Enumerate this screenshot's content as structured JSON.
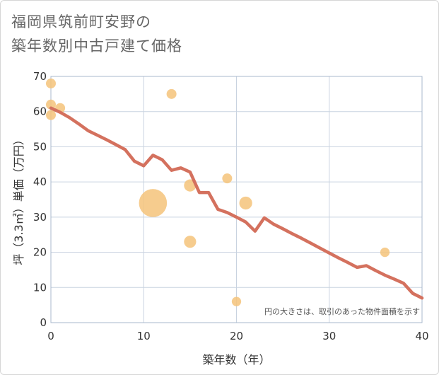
{
  "title": {
    "line1": "福岡県筑前町安野の",
    "line2": "築年数別中古戸建て価格"
  },
  "colors": {
    "line": "#d4715e",
    "bubble": "#f4c37a",
    "grid": "#c9d3e0",
    "plot_border": "#a9b8cc"
  },
  "chart_data": {
    "type": "scatter",
    "title": "福岡県筑前町安野の築年数別中古戸建て価格",
    "xlabel": "築年数（年）",
    "ylabel": "坪（3.3㎡）単価（万円）",
    "xlim": [
      0,
      40
    ],
    "ylim": [
      0,
      70
    ],
    "x_ticks": [
      0,
      10,
      20,
      30,
      40
    ],
    "y_ticks": [
      0,
      10,
      20,
      30,
      40,
      50,
      60,
      70
    ],
    "grid": true,
    "annotation": "円の大きさは、取引のあった物件面積を示す",
    "scatter": [
      {
        "x": 0,
        "y": 68,
        "size": 1
      },
      {
        "x": 0,
        "y": 62,
        "size": 1
      },
      {
        "x": 0,
        "y": 59,
        "size": 1
      },
      {
        "x": 1,
        "y": 61,
        "size": 1
      },
      {
        "x": 11,
        "y": 34,
        "size": 8
      },
      {
        "x": 13,
        "y": 65,
        "size": 1
      },
      {
        "x": 15,
        "y": 39,
        "size": 1.5
      },
      {
        "x": 15,
        "y": 23,
        "size": 1.5
      },
      {
        "x": 19,
        "y": 41,
        "size": 1
      },
      {
        "x": 20,
        "y": 6,
        "size": 0.9
      },
      {
        "x": 21,
        "y": 34,
        "size": 1.7
      },
      {
        "x": 36,
        "y": 20,
        "size": 0.9
      }
    ],
    "trend_line": {
      "x": [
        0,
        1,
        2,
        3,
        4,
        5,
        6,
        7,
        8,
        9,
        10,
        11,
        12,
        13,
        14,
        15,
        16,
        17,
        18,
        19,
        20,
        21,
        22,
        23,
        24,
        25,
        26,
        27,
        28,
        29,
        30,
        31,
        32,
        33,
        34,
        35,
        36,
        37,
        38,
        39,
        40
      ],
      "y": [
        61,
        59.8,
        58.3,
        56.5,
        54.6,
        53.3,
        52,
        50.6,
        49.2,
        45.9,
        44.6,
        47.6,
        46.3,
        43.3,
        44,
        42.8,
        37,
        37,
        32.2,
        31.3,
        30,
        28.6,
        26,
        29.8,
        28,
        26.7,
        25.3,
        24,
        22.6,
        21.2,
        19.8,
        18.4,
        17.1,
        15.7,
        16.2,
        14.8,
        13.5,
        12.4,
        11.2,
        8.3,
        7
      ]
    }
  }
}
